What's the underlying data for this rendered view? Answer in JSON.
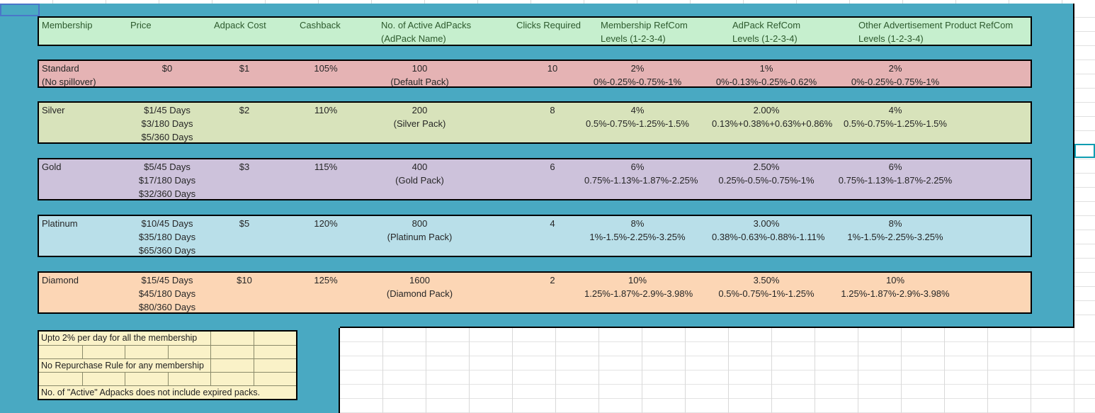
{
  "app": {
    "kind": "spreadsheet-worksheet"
  },
  "colors": {
    "filled_range_background": "#49A9C2",
    "header_bg": "#C6EFCE",
    "header_text": "#2D5A2D",
    "row_standard_bg": "#E5B3B4",
    "row_silver_bg": "#D8E3BB",
    "row_gold_bg": "#CDC2DB",
    "row_platinum_bg": "#B9DFE9",
    "row_diamond_bg": "#FCD6B5",
    "notes_bg": "#FAF2C8",
    "table_border": "#000000",
    "active_cell_border_blue": "#4A77C9",
    "active_cell_border_teal": "#0F9DB1",
    "gridline": "#D9D9D9"
  },
  "table": {
    "header": {
      "cells": [
        [
          "Membership"
        ],
        [
          "Price"
        ],
        [
          "Adpack Cost"
        ],
        [
          "Cashback"
        ],
        [
          "No. of Active AdPacks",
          "(AdPack Name)"
        ],
        [
          "Clicks Required"
        ],
        [
          "Membership RefCom",
          "Levels (1-2-3-4)"
        ],
        [
          "AdPack RefCom",
          "Levels (1-2-3-4)"
        ],
        [
          "Other Advertisement Product RefCom",
          "Levels (1-2-3-4)"
        ]
      ]
    },
    "rows": [
      {
        "name": "standard",
        "cells": {
          "membership": [
            "Standard",
            "(No spillover)"
          ],
          "price": [
            "$0"
          ],
          "adpack_cost": [
            "$1"
          ],
          "cashback": [
            "105%"
          ],
          "active_adpacks": [
            "100",
            "(Default Pack)"
          ],
          "clicks_required": [
            "10"
          ],
          "membership_refcom": [
            "2%",
            "0%-0.25%-0.75%-1%"
          ],
          "adpack_refcom": [
            "1%",
            "0%-0.13%-0.25%-0.62%"
          ],
          "other_refcom": [
            "2%",
            "0%-0.25%-0.75%-1%"
          ]
        }
      },
      {
        "name": "silver",
        "cells": {
          "membership": [
            "Silver"
          ],
          "price": [
            "$1/45 Days",
            "$3/180 Days",
            "$5/360 Days"
          ],
          "adpack_cost": [
            "$2"
          ],
          "cashback": [
            "110%"
          ],
          "active_adpacks": [
            "200",
            "(Silver Pack)"
          ],
          "clicks_required": [
            "8"
          ],
          "membership_refcom": [
            "4%",
            "0.5%-0.75%-1.25%-1.5%"
          ],
          "adpack_refcom": [
            "2.00%",
            "0.13%+0.38%+0.63%+0.86%"
          ],
          "other_refcom": [
            "4%",
            "0.5%-0.75%-1.25%-1.5%"
          ]
        }
      },
      {
        "name": "gold",
        "cells": {
          "membership": [
            "Gold"
          ],
          "price": [
            "$5/45 Days",
            "$17/180 Days",
            "$32/360 Days"
          ],
          "adpack_cost": [
            "$3"
          ],
          "cashback": [
            "115%"
          ],
          "active_adpacks": [
            "400",
            "(Gold Pack)"
          ],
          "clicks_required": [
            "6"
          ],
          "membership_refcom": [
            "6%",
            "0.75%-1.13%-1.87%-2.25%"
          ],
          "adpack_refcom": [
            "2.50%",
            "0.25%-0.5%-0.75%-1%"
          ],
          "other_refcom": [
            "6%",
            "0.75%-1.13%-1.87%-2.25%"
          ]
        }
      },
      {
        "name": "platinum",
        "cells": {
          "membership": [
            "Platinum"
          ],
          "price": [
            "$10/45 Days",
            "$35/180 Days",
            "$65/360 Days"
          ],
          "adpack_cost": [
            "$5"
          ],
          "cashback": [
            "120%"
          ],
          "active_adpacks": [
            "800",
            "(Platinum Pack)"
          ],
          "clicks_required": [
            "4"
          ],
          "membership_refcom": [
            "8%",
            "1%-1.5%-2.25%-3.25%"
          ],
          "adpack_refcom": [
            "3.00%",
            "0.38%-0.63%-0.88%-1.11%"
          ],
          "other_refcom": [
            "8%",
            "1%-1.5%-2.25%-3.25%"
          ]
        }
      },
      {
        "name": "diamond",
        "cells": {
          "membership": [
            "Diamond"
          ],
          "price": [
            "$15/45 Days",
            "$45/180 Days",
            "$80/360 Days"
          ],
          "adpack_cost": [
            "$10"
          ],
          "cashback": [
            "125%"
          ],
          "active_adpacks": [
            "1600",
            "(Diamond Pack)"
          ],
          "clicks_required": [
            "2"
          ],
          "membership_refcom": [
            "10%",
            "1.25%-1.87%-2.9%-3.98%"
          ],
          "adpack_refcom": [
            "3.50%",
            "0.5%-0.75%-1%-1.25%"
          ],
          "other_refcom": [
            "10%",
            "1.25%-1.87%-2.9%-3.98%"
          ]
        }
      }
    ]
  },
  "notes": {
    "items": [
      "Upto 2% per day for all the membership",
      "No Repurchase Rule for any membership",
      "No. of \"Active\" Adpacks does not include expired packs."
    ]
  }
}
